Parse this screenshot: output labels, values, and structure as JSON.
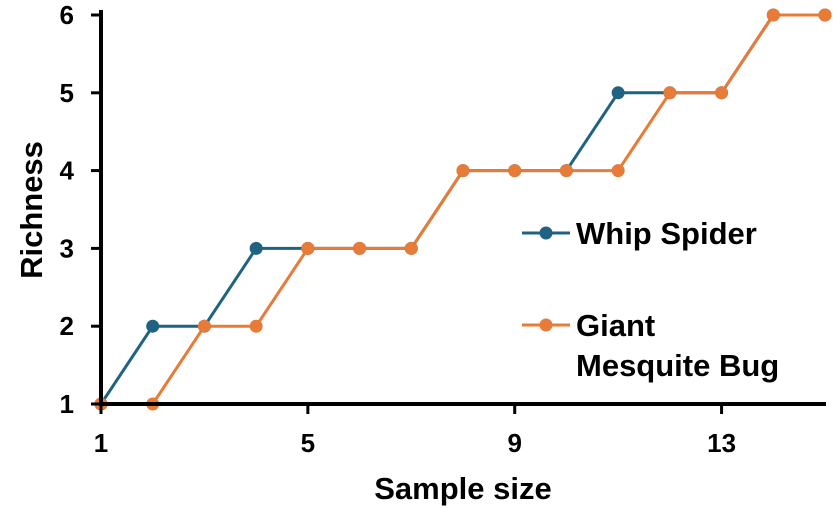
{
  "chart_data": {
    "type": "line",
    "title": "",
    "xlabel": "Sample size",
    "ylabel": "Richness",
    "x": [
      1,
      2,
      3,
      4,
      5,
      6,
      7,
      8,
      9,
      10,
      11,
      12,
      13,
      14,
      15
    ],
    "xticks": [
      "1",
      "5",
      "9",
      "13"
    ],
    "yticks": [
      "1",
      "2",
      "3",
      "4",
      "5",
      "6"
    ],
    "xlim": [
      1,
      15
    ],
    "ylim": [
      1,
      6
    ],
    "grid": false,
    "legend_position": "right",
    "series": [
      {
        "name": "Whip Spider",
        "color": "#1f6282",
        "values": [
          1,
          2,
          2,
          3,
          3,
          3,
          3,
          4,
          4,
          4,
          5,
          5,
          5,
          6,
          6
        ]
      },
      {
        "name": "Giant Mesquite Bug",
        "name_lines": [
          "Giant",
          "Mesquite Bug"
        ],
        "color": "#e87b37",
        "values": [
          1,
          1,
          2,
          2,
          3,
          3,
          3,
          4,
          4,
          4,
          4,
          5,
          5,
          6,
          6
        ]
      }
    ]
  }
}
